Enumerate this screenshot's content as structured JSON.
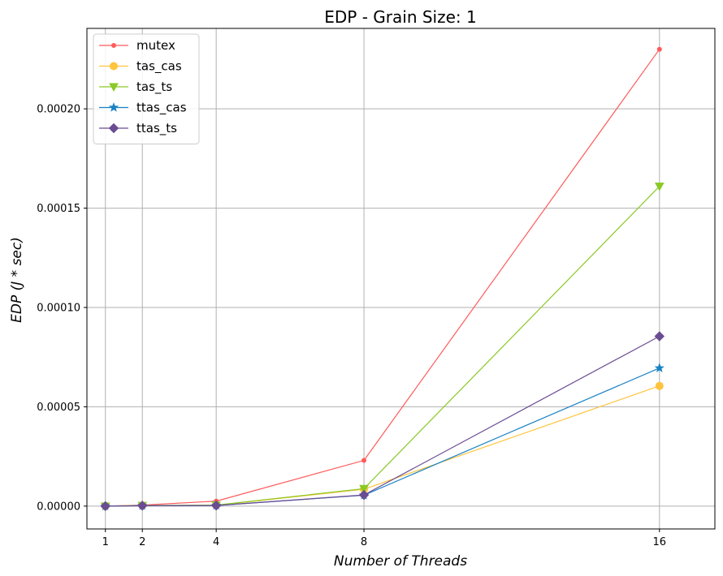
{
  "chart_data": {
    "type": "line",
    "title": "EDP - Grain Size: 1",
    "xlabel": "Number of Threads",
    "ylabel": "EDP (J * sec)",
    "x": [
      1,
      2,
      4,
      8,
      16
    ],
    "x_ticks": [
      "1",
      "2",
      "4",
      "8",
      "16"
    ],
    "y_ticks": [
      "0.00000",
      "0.00005",
      "0.00010",
      "0.00015",
      "0.00020"
    ],
    "xlim": [
      0.5,
      17.5
    ],
    "ylim": [
      -1.15e-05,
      0.0002405
    ],
    "grid": true,
    "legend_position": "top-left",
    "series": [
      {
        "name": "mutex",
        "color": "#ff5a5a",
        "marker": "point",
        "values": [
          0,
          5e-07,
          2.5e-06,
          2.3e-05,
          0.00023
        ]
      },
      {
        "name": "tas_cas",
        "color": "#ffc43d",
        "marker": "circle",
        "values": [
          0,
          3e-07,
          4e-07,
          8.5e-06,
          6.05e-05
        ]
      },
      {
        "name": "tas_ts",
        "color": "#8ac926",
        "marker": "triangle-down",
        "values": [
          0,
          3e-07,
          5e-07,
          8.8e-06,
          0.000161
        ]
      },
      {
        "name": "ttas_cas",
        "color": "#1982c4",
        "marker": "star",
        "values": [
          0,
          2e-07,
          3e-07,
          5.5e-06,
          6.95e-05
        ]
      },
      {
        "name": "ttas_ts",
        "color": "#6a4c93",
        "marker": "diamond",
        "values": [
          0,
          2e-07,
          3e-07,
          5.6e-06,
          8.55e-05
        ]
      }
    ]
  }
}
